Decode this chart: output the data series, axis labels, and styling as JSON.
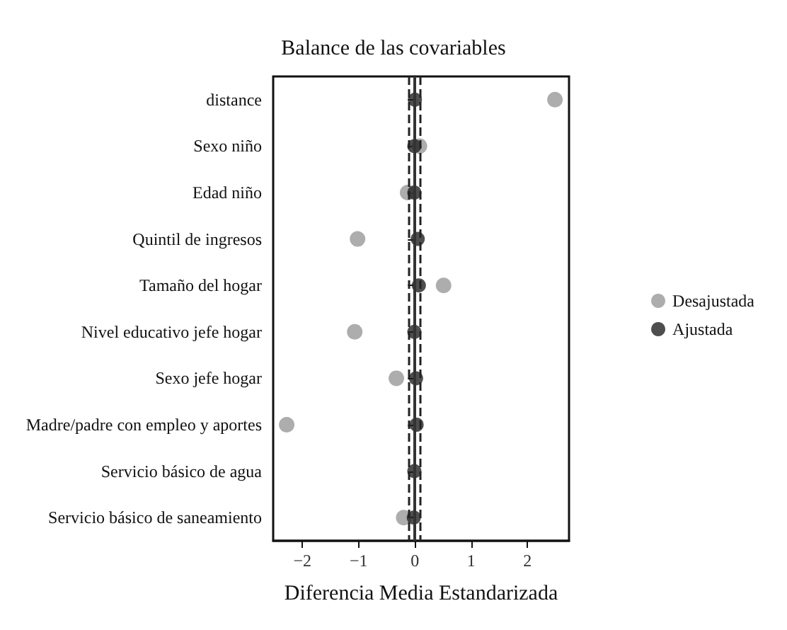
{
  "chart_data": {
    "type": "scatter",
    "title": "Balance de las covariables",
    "xlabel": "Diferencia Media Estandarizada",
    "orientation": "horizontal",
    "categories": [
      "distance",
      "Sexo niño",
      "Edad niño",
      "Quintil de ingresos",
      "Tamaño del hogar",
      "Nivel educativo jefe hogar",
      "Sexo jefe hogar",
      "Madre/padre con empleo y aportes",
      "Servicio básico de agua",
      "Servicio básico de saneamiento"
    ],
    "series": [
      {
        "name": "Desajustada",
        "color": "#999999",
        "values": [
          2.49,
          0.08,
          -0.13,
          -1.02,
          0.51,
          -1.07,
          -0.33,
          -2.28,
          null,
          -0.2
        ]
      },
      {
        "name": "Ajustada",
        "color": "#222222",
        "values": [
          0.0,
          -0.01,
          -0.01,
          0.05,
          0.07,
          -0.01,
          0.02,
          0.03,
          -0.01,
          -0.02
        ]
      }
    ],
    "xlim": [
      -2.52,
      2.74
    ],
    "xticks": [
      -2,
      -1,
      0,
      1,
      2
    ],
    "ref_lines": [
      {
        "axis": "x",
        "value": 0,
        "line_style": "solid",
        "color": "#333333"
      },
      {
        "axis": "x",
        "value": -0.1,
        "line_style": "dashed",
        "color": "#222222"
      },
      {
        "axis": "x",
        "value": 0.1,
        "line_style": "dashed",
        "color": "#222222"
      }
    ],
    "grid": false,
    "legend": "right",
    "marker": "circle"
  }
}
